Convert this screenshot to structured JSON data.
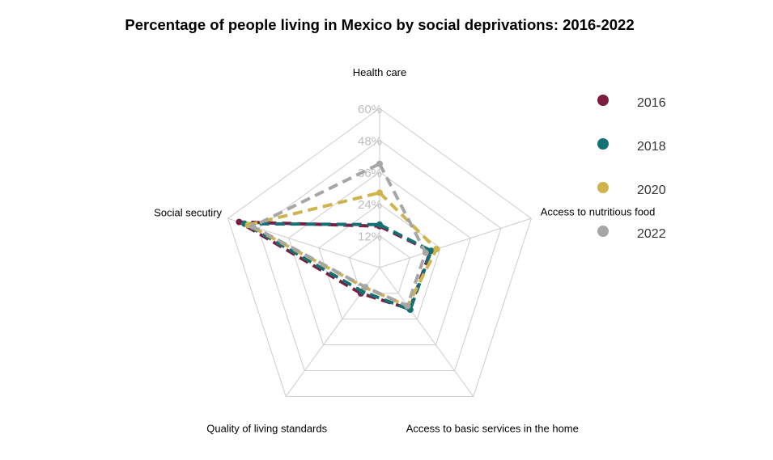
{
  "chart_data": {
    "type": "radar",
    "title": "Percentage of people living in Mexico by social deprivations: 2016-2022",
    "axes": [
      "Health care",
      "Access to nutritious food",
      "Access to basic services in the home",
      "Quality of living standards",
      "Social secutiry"
    ],
    "ticks": [
      "12%",
      "24%",
      "36%",
      "48%",
      "60%"
    ],
    "rmax": 60,
    "series": [
      {
        "name": "2016",
        "color": "#7b1d3f",
        "values": [
          15.6,
          20.1,
          19.3,
          12.0,
          55.6
        ]
      },
      {
        "name": "2018",
        "color": "#137074",
        "values": [
          16.2,
          20.4,
          19.6,
          11.1,
          53.5
        ]
      },
      {
        "name": "2020",
        "color": "#cfb34c",
        "values": [
          28.2,
          22.5,
          17.9,
          9.3,
          52.0
        ]
      },
      {
        "name": "2022",
        "color": "#a6a6a6",
        "values": [
          39.1,
          18.2,
          17.8,
          9.1,
          50.2
        ]
      }
    ],
    "legend_position": "right"
  }
}
